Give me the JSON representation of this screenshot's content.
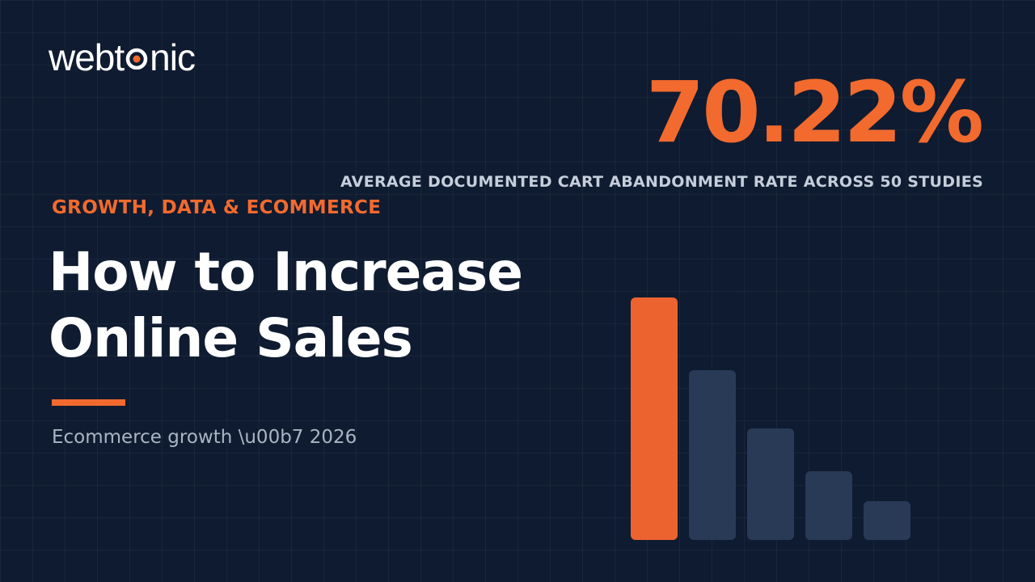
{
  "logo": {
    "before": "webt",
    "after": "nic"
  },
  "stat": {
    "value": "70.22%",
    "caption": "AVERAGE DOCUMENTED CART ABANDONMENT RATE ACROSS 50 STUDIES"
  },
  "eyebrow": "GROWTH, DATA & ECOMMERCE",
  "title": {
    "line1": "How to Increase",
    "line2": "Online Sales"
  },
  "subtitle": "Ecommerce growth \\u00b7 2026"
}
